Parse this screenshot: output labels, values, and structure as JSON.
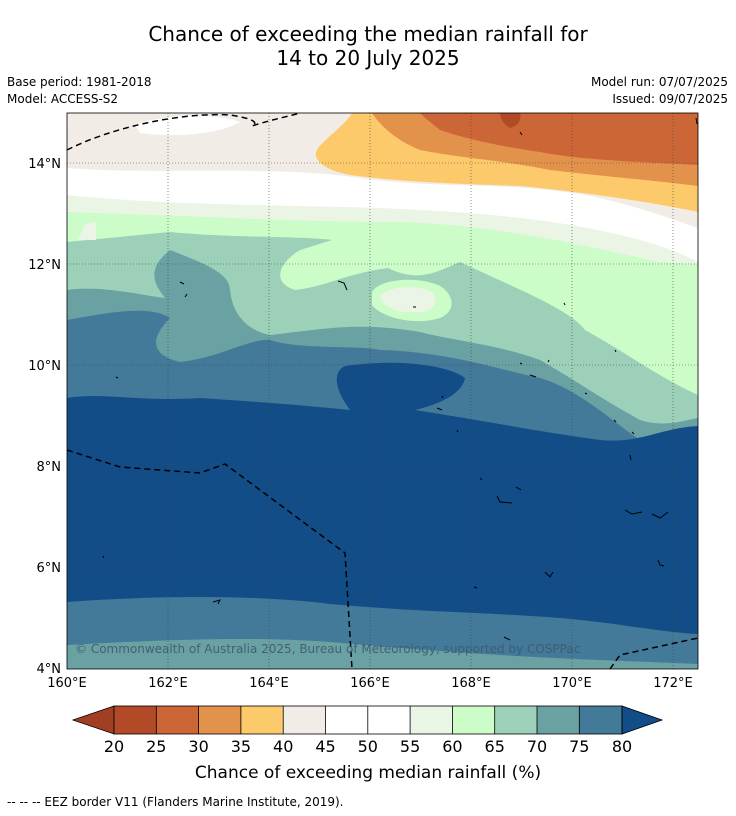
{
  "title": {
    "line1": "Chance of exceeding the median rainfall for",
    "line2": "14 to 20 July 2025"
  },
  "meta": {
    "base_period": "Base period: 1981-2018",
    "model": "Model: ACCESS-S2",
    "model_run": "Model run: 07/07/2025",
    "issued": "Issued: 09/07/2025"
  },
  "map": {
    "lon_range": [
      160,
      172.5
    ],
    "lat_range": [
      4,
      15
    ],
    "lon_ticks": [
      160,
      162,
      164,
      166,
      168,
      170,
      172
    ],
    "lat_ticks": [
      4,
      6,
      8,
      10,
      12,
      14
    ],
    "lon_tick_labels": [
      "160°E",
      "162°E",
      "164°E",
      "166°E",
      "168°E",
      "170°E",
      "172°E"
    ],
    "lat_tick_labels": [
      "4°N",
      "6°N",
      "8°N",
      "10°N",
      "12°N",
      "14°N"
    ],
    "gridlines": "dotted",
    "watermark": "© Commonwealth of Australia 2025, Bureau of Meteorology, supported by COSPPac"
  },
  "colorbar": {
    "ticks": [
      "20",
      "25",
      "30",
      "35",
      "40",
      "45",
      "50",
      "55",
      "60",
      "65",
      "70",
      "75",
      "80"
    ],
    "label": "Chance of exceeding median rainfall (%)",
    "colors": {
      "lt20": "#a23e23",
      "20-25": "#b24a28",
      "25-30": "#cc6636",
      "30-35": "#e3924b",
      "35-40": "#fdca6b",
      "40-45": "#f1ede6",
      "45-50": "#ffffff",
      "50-55": "#ffffff",
      "55-60": "#eaf5e6",
      "60-65": "#ccfcc8",
      "65-70": "#9cd0b8",
      "70-75": "#6aa1a3",
      "75-80": "#437a99",
      "gt80": "#134d88"
    }
  },
  "footnote": "-- -- -- EEZ border V11 (Flanders Marine Institute, 2019)."
}
